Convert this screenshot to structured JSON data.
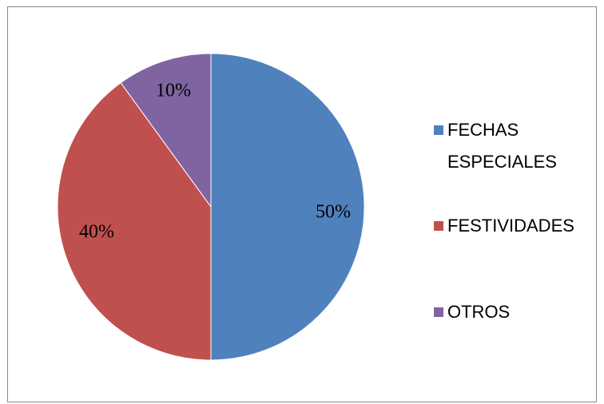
{
  "chart_data": {
    "type": "pie",
    "categories": [
      "FECHAS ESPECIALES",
      "FESTIVIDADES",
      "OTROS"
    ],
    "values": [
      50,
      40,
      10
    ],
    "value_labels": [
      "50%",
      "40%",
      "10%"
    ],
    "colors": [
      "#4f81bd",
      "#c0504d",
      "#8064a2"
    ],
    "legend": "right"
  }
}
